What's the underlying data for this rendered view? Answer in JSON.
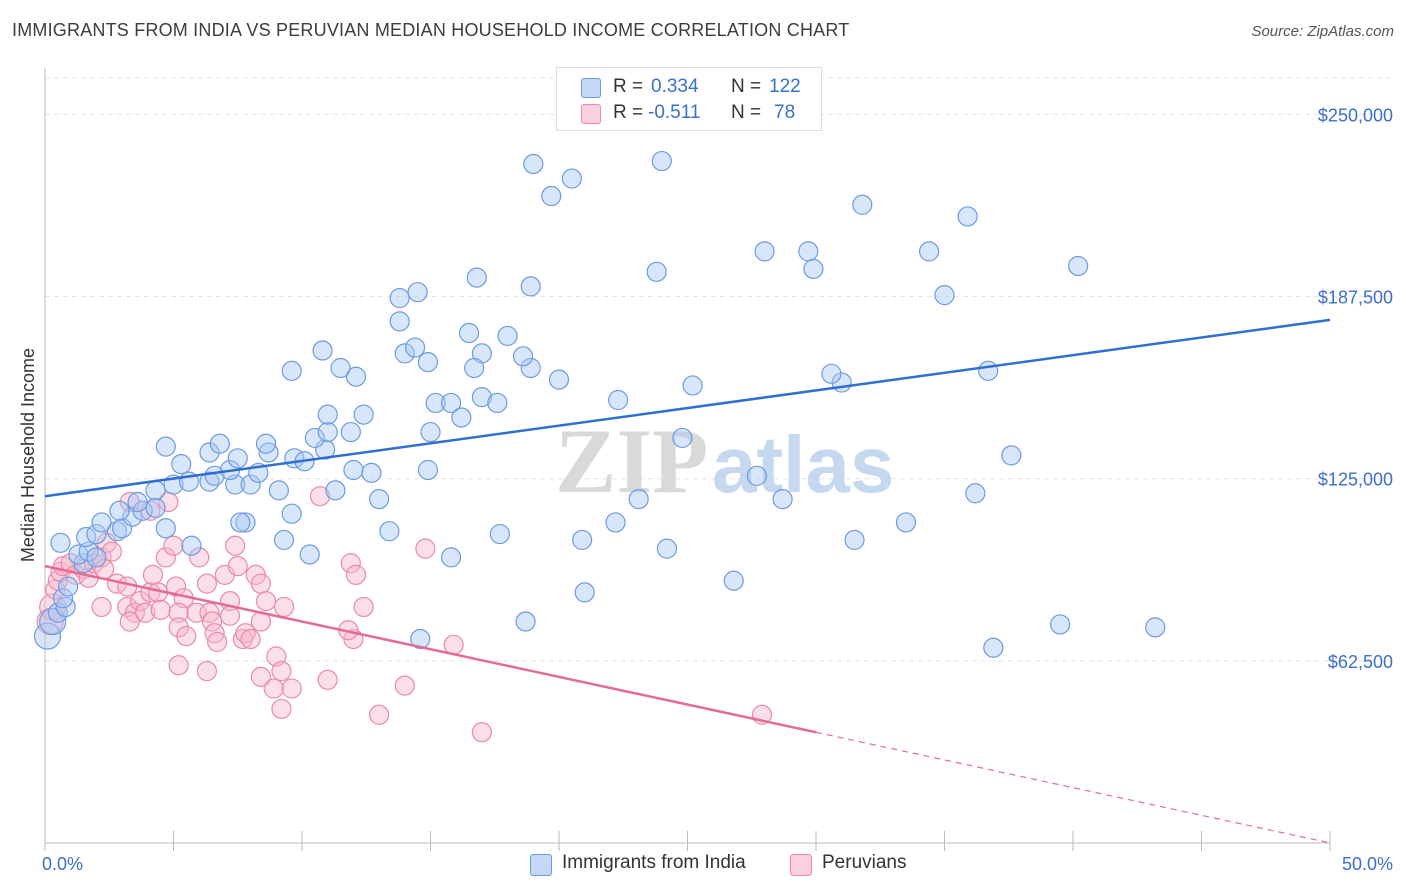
{
  "title": "IMMIGRANTS FROM INDIA VS PERUVIAN MEDIAN HOUSEHOLD INCOME CORRELATION CHART",
  "source": "Source: ZipAtlas.com",
  "watermark": {
    "zip": "ZIP",
    "atlas": "atlas"
  },
  "legend_top": {
    "r_label": "R =",
    "n_label": "N =",
    "rows": [
      {
        "r": "0.334",
        "n": "122"
      },
      {
        "r": "-0.511",
        "n": "78"
      }
    ]
  },
  "legend_bottom": [
    "Immigrants from India",
    "Peruvians"
  ],
  "colors": {
    "blue_fill": "#a9c8f3",
    "blue_stroke": "#6e9be0",
    "blue_line": "#2f6fd0",
    "pink_fill": "#f7b9cc",
    "pink_stroke": "#e98aa8",
    "pink_line": "#e46b95",
    "axis_text": "#3b6fcb",
    "grid": "#e3e3e3"
  },
  "chart_data": {
    "type": "scatter",
    "title": "IMMIGRANTS FROM INDIA VS PERUVIAN MEDIAN HOUSEHOLD INCOME CORRELATION CHART",
    "xlabel": "",
    "ylabel": "Median Household Income",
    "xlim": [
      0,
      50
    ],
    "ylim": [
      0,
      262500
    ],
    "x_tick_labels": [
      "0.0%",
      "50.0%"
    ],
    "y_ticks": [
      62500,
      125000,
      187500,
      250000
    ],
    "y_tick_labels": [
      "$62,500",
      "$125,000",
      "$187,500",
      "$250,000"
    ],
    "grid": true,
    "series": [
      {
        "name": "Immigrants from India",
        "color": "#a9c8f3",
        "points": [
          [
            0.1,
            71000
          ],
          [
            0.3,
            76000
          ],
          [
            0.5,
            79000
          ],
          [
            0.8,
            81000
          ],
          [
            0.7,
            84000
          ],
          [
            0.9,
            88000
          ],
          [
            1.5,
            96000
          ],
          [
            1.3,
            99000
          ],
          [
            1.7,
            100000
          ],
          [
            2.0,
            98000
          ],
          [
            1.6,
            105000
          ],
          [
            2.0,
            106000
          ],
          [
            2.8,
            107000
          ],
          [
            3.0,
            108000
          ],
          [
            2.2,
            110000
          ],
          [
            3.4,
            112000
          ],
          [
            2.9,
            114000
          ],
          [
            3.8,
            114000
          ],
          [
            4.3,
            115000
          ],
          [
            3.6,
            117000
          ],
          [
            4.7,
            108000
          ],
          [
            5.7,
            102000
          ],
          [
            4.3,
            121000
          ],
          [
            5.0,
            123000
          ],
          [
            5.6,
            124000
          ],
          [
            6.4,
            124000
          ],
          [
            7.4,
            123000
          ],
          [
            8.0,
            123000
          ],
          [
            9.1,
            121000
          ],
          [
            8.3,
            127000
          ],
          [
            6.6,
            126000
          ],
          [
            7.2,
            128000
          ],
          [
            5.3,
            130000
          ],
          [
            7.5,
            132000
          ],
          [
            9.7,
            132000
          ],
          [
            12.0,
            128000
          ],
          [
            12.7,
            127000
          ],
          [
            11.3,
            121000
          ],
          [
            10.1,
            131000
          ],
          [
            10.9,
            135000
          ],
          [
            6.4,
            134000
          ],
          [
            8.7,
            134000
          ],
          [
            4.7,
            136000
          ],
          [
            6.8,
            137000
          ],
          [
            8.6,
            137000
          ],
          [
            10.5,
            139000
          ],
          [
            11.0,
            141000
          ],
          [
            11.9,
            141000
          ],
          [
            15.0,
            141000
          ],
          [
            12.4,
            147000
          ],
          [
            11.0,
            147000
          ],
          [
            15.2,
            151000
          ],
          [
            15.8,
            151000
          ],
          [
            16.2,
            146000
          ],
          [
            17.0,
            153000
          ],
          [
            17.6,
            151000
          ],
          [
            14.9,
            128000
          ],
          [
            13.0,
            118000
          ],
          [
            9.6,
            113000
          ],
          [
            7.8,
            110000
          ],
          [
            7.6,
            110000
          ],
          [
            9.3,
            104000
          ],
          [
            10.3,
            99000
          ],
          [
            13.4,
            107000
          ],
          [
            15.8,
            98000
          ],
          [
            17.7,
            106000
          ],
          [
            20.9,
            104000
          ],
          [
            22.2,
            110000
          ],
          [
            23.1,
            118000
          ],
          [
            24.2,
            101000
          ],
          [
            26.8,
            90000
          ],
          [
            27.7,
            126000
          ],
          [
            28.7,
            118000
          ],
          [
            31.5,
            104000
          ],
          [
            33.5,
            110000
          ],
          [
            36.2,
            120000
          ],
          [
            37.6,
            133000
          ],
          [
            35.0,
            188000
          ],
          [
            34.4,
            203000
          ],
          [
            31.0,
            158000
          ],
          [
            30.6,
            161000
          ],
          [
            25.2,
            157000
          ],
          [
            24.8,
            139000
          ],
          [
            22.3,
            152000
          ],
          [
            20.0,
            159000
          ],
          [
            18.9,
            163000
          ],
          [
            18.0,
            174000
          ],
          [
            18.6,
            167000
          ],
          [
            17.0,
            168000
          ],
          [
            16.7,
            163000
          ],
          [
            14.9,
            165000
          ],
          [
            14.0,
            168000
          ],
          [
            13.8,
            179000
          ],
          [
            14.4,
            170000
          ],
          [
            12.1,
            160000
          ],
          [
            11.5,
            163000
          ],
          [
            10.8,
            169000
          ],
          [
            9.6,
            162000
          ],
          [
            13.8,
            187000
          ],
          [
            14.5,
            189000
          ],
          [
            16.5,
            175000
          ],
          [
            16.8,
            194000
          ],
          [
            18.9,
            191000
          ],
          [
            19.7,
            222000
          ],
          [
            20.5,
            228000
          ],
          [
            24.0,
            234000
          ],
          [
            23.8,
            196000
          ],
          [
            29.9,
            197000
          ],
          [
            28.0,
            203000
          ],
          [
            29.7,
            203000
          ],
          [
            31.8,
            219000
          ],
          [
            35.9,
            215000
          ],
          [
            40.2,
            198000
          ],
          [
            36.7,
            162000
          ],
          [
            19.0,
            233000
          ],
          [
            21.0,
            86000
          ],
          [
            18.7,
            76000
          ],
          [
            14.6,
            70000
          ],
          [
            36.9,
            67000
          ],
          [
            39.5,
            75000
          ],
          [
            43.2,
            74000
          ],
          [
            0.6,
            103000
          ]
        ]
      },
      {
        "name": "Peruvians",
        "color": "#f7b9cc",
        "points": [
          [
            0.2,
            76000
          ],
          [
            0.3,
            81000
          ],
          [
            0.4,
            87000
          ],
          [
            0.5,
            90000
          ],
          [
            0.6,
            93000
          ],
          [
            0.7,
            95000
          ],
          [
            1.0,
            96000
          ],
          [
            1.2,
            92000
          ],
          [
            1.5,
            94000
          ],
          [
            1.7,
            91000
          ],
          [
            1.9,
            96000
          ],
          [
            2.2,
            98000
          ],
          [
            2.4,
            103000
          ],
          [
            2.6,
            100000
          ],
          [
            2.3,
            94000
          ],
          [
            2.8,
            89000
          ],
          [
            2.2,
            81000
          ],
          [
            3.2,
            88000
          ],
          [
            3.2,
            81000
          ],
          [
            3.5,
            79000
          ],
          [
            3.7,
            83000
          ],
          [
            3.3,
            76000
          ],
          [
            3.9,
            79000
          ],
          [
            4.1,
            86000
          ],
          [
            4.4,
            86000
          ],
          [
            4.5,
            80000
          ],
          [
            4.2,
            92000
          ],
          [
            4.7,
            98000
          ],
          [
            5.0,
            102000
          ],
          [
            5.1,
            88000
          ],
          [
            5.4,
            84000
          ],
          [
            5.2,
            79000
          ],
          [
            5.9,
            79000
          ],
          [
            5.2,
            74000
          ],
          [
            5.5,
            71000
          ],
          [
            6.0,
            98000
          ],
          [
            6.3,
            89000
          ],
          [
            6.4,
            79000
          ],
          [
            6.5,
            76000
          ],
          [
            6.6,
            72000
          ],
          [
            6.7,
            69000
          ],
          [
            7.0,
            92000
          ],
          [
            7.2,
            83000
          ],
          [
            7.2,
            78000
          ],
          [
            7.4,
            102000
          ],
          [
            7.5,
            95000
          ],
          [
            7.7,
            70000
          ],
          [
            7.8,
            72000
          ],
          [
            8.0,
            70000
          ],
          [
            8.2,
            92000
          ],
          [
            8.4,
            89000
          ],
          [
            8.4,
            76000
          ],
          [
            8.6,
            83000
          ],
          [
            9.0,
            64000
          ],
          [
            8.9,
            53000
          ],
          [
            9.2,
            59000
          ],
          [
            9.3,
            81000
          ],
          [
            9.2,
            46000
          ],
          [
            9.6,
            53000
          ],
          [
            10.7,
            119000
          ],
          [
            11.9,
            96000
          ],
          [
            12.1,
            92000
          ],
          [
            12.4,
            81000
          ],
          [
            12.0,
            70000
          ],
          [
            11.8,
            73000
          ],
          [
            13.0,
            44000
          ],
          [
            14.0,
            54000
          ],
          [
            14.8,
            101000
          ],
          [
            15.9,
            68000
          ],
          [
            17.0,
            38000
          ],
          [
            11.0,
            56000
          ],
          [
            8.4,
            57000
          ],
          [
            6.3,
            59000
          ],
          [
            5.2,
            61000
          ],
          [
            4.8,
            117000
          ],
          [
            4.1,
            114000
          ],
          [
            3.3,
            117000
          ],
          [
            27.9,
            44000
          ]
        ]
      }
    ],
    "trendlines": [
      {
        "series": "Immigrants from India",
        "x": [
          0,
          50
        ],
        "y": [
          119000,
          179500
        ]
      },
      {
        "series": "Peruvians",
        "x": [
          0,
          30
        ],
        "y": [
          95000,
          38000
        ],
        "dashed_extension_to": [
          50,
          0
        ]
      }
    ]
  }
}
